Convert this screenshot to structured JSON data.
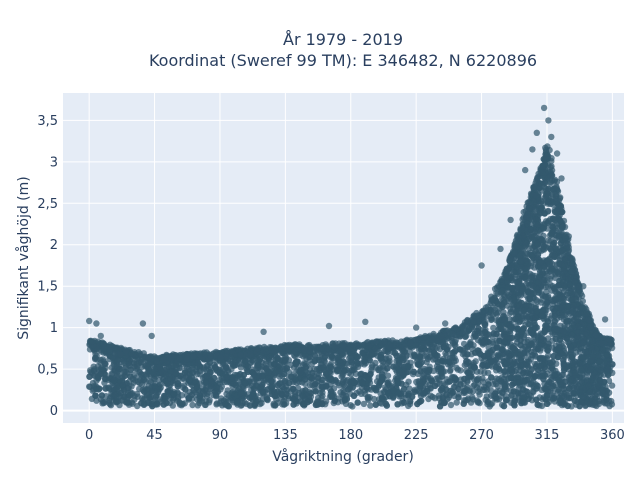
{
  "chart_data": {
    "type": "scatter",
    "title_line1": "År 1979 - 2019",
    "title_line2": "Koordinat (Sweref 99 TM): E 346482, N 6220896",
    "xlabel": "Vågriktning (grader)",
    "ylabel": "Signifikant våghöjd (m)",
    "xlim": [
      -18,
      368
    ],
    "ylim": [
      -0.15,
      3.83
    ],
    "xticks": [
      0,
      45,
      90,
      135,
      180,
      225,
      270,
      315,
      360
    ],
    "xtick_labels": [
      "0",
      "45",
      "90",
      "135",
      "180",
      "225",
      "270",
      "315",
      "360"
    ],
    "yticks": [
      0,
      0.5,
      1,
      1.5,
      2,
      2.5,
      3,
      3.5
    ],
    "ytick_labels": [
      "0",
      "0,5",
      "1",
      "1,5",
      "2",
      "2,5",
      "3",
      "3,5"
    ],
    "grid": true,
    "marker_color": "#33596e",
    "plot_bg": "#e5ecf6",
    "envelope": {
      "x": [
        0,
        20,
        45,
        90,
        135,
        180,
        225,
        255,
        270,
        285,
        300,
        310,
        315,
        320,
        330,
        340,
        350,
        360
      ],
      "y_max": [
        0.85,
        0.75,
        0.65,
        0.7,
        0.78,
        0.8,
        0.85,
        1.0,
        1.2,
        1.6,
        2.4,
        2.9,
        3.2,
        2.9,
        2.0,
        1.3,
        0.9,
        0.85
      ],
      "y_min": [
        0.05,
        0.05,
        0.05,
        0.05,
        0.05,
        0.05,
        0.05,
        0.05,
        0.05,
        0.05,
        0.05,
        0.05,
        0.05,
        0.05,
        0.05,
        0.05,
        0.05,
        0.05
      ]
    },
    "outliers": [
      {
        "x": 0,
        "y": 1.08
      },
      {
        "x": 5,
        "y": 1.05
      },
      {
        "x": 8,
        "y": 0.9
      },
      {
        "x": 37,
        "y": 1.05
      },
      {
        "x": 43,
        "y": 0.9
      },
      {
        "x": 120,
        "y": 0.95
      },
      {
        "x": 165,
        "y": 1.02
      },
      {
        "x": 190,
        "y": 1.07
      },
      {
        "x": 225,
        "y": 1.0
      },
      {
        "x": 245,
        "y": 1.05
      },
      {
        "x": 270,
        "y": 1.75
      },
      {
        "x": 283,
        "y": 1.95
      },
      {
        "x": 290,
        "y": 2.3
      },
      {
        "x": 300,
        "y": 2.9
      },
      {
        "x": 305,
        "y": 3.15
      },
      {
        "x": 308,
        "y": 3.35
      },
      {
        "x": 313,
        "y": 3.65
      },
      {
        "x": 316,
        "y": 3.5
      },
      {
        "x": 318,
        "y": 3.3
      },
      {
        "x": 322,
        "y": 3.1
      },
      {
        "x": 325,
        "y": 2.8
      },
      {
        "x": 330,
        "y": 2.1
      },
      {
        "x": 340,
        "y": 1.5
      },
      {
        "x": 355,
        "y": 1.1
      }
    ]
  }
}
